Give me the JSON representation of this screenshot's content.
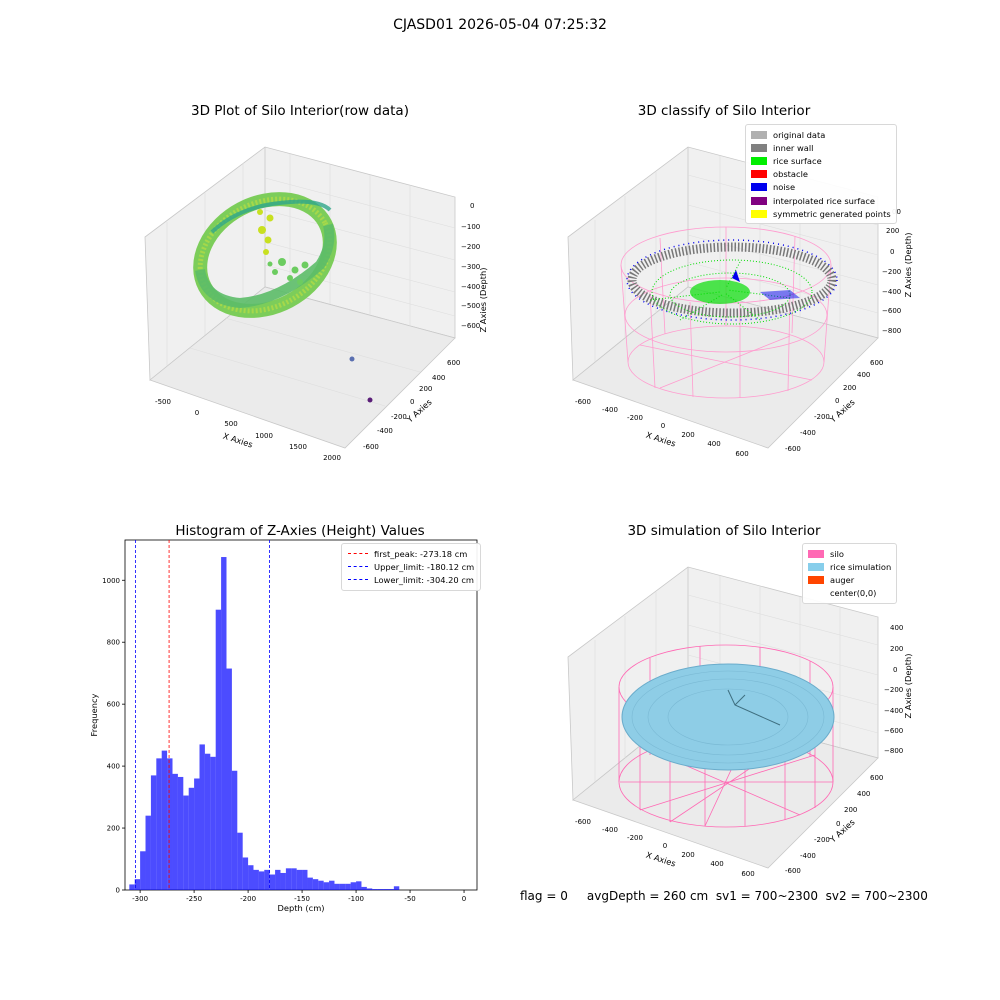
{
  "figure": {
    "suptitle": "CJASD01 2026-05-04 07:25:32",
    "footer": "flag = 0     avgDepth = 260 cm  sv1 = 700~2300  sv2 = 700~2300"
  },
  "panels": {
    "raw": {
      "title": "3D Plot of Silo Interior(row data)",
      "xlabel": "X Axies",
      "ylabel": "Y Axies",
      "zlabel": "Z Axies (Depth)",
      "xticks": [
        "-500",
        "0",
        "500",
        "1000",
        "1500",
        "2000"
      ],
      "yticks": [
        "-600",
        "-400",
        "-200",
        "0",
        "200",
        "400",
        "600"
      ],
      "zticks": [
        "0",
        "−100",
        "−200",
        "−300",
        "−400",
        "−500",
        "−600"
      ]
    },
    "classify": {
      "title": "3D classify of Silo Interior",
      "xlabel": "X Axies",
      "ylabel": "Y Axies",
      "zlabel": "Z Axies (Depth)",
      "xticks": [
        "-600",
        "-400",
        "-200",
        "0",
        "200",
        "400",
        "600"
      ],
      "yticks": [
        "-600",
        "-400",
        "-200",
        "0",
        "200",
        "400",
        "600"
      ],
      "zticks": [
        "200",
        "0",
        "−200",
        "−400",
        "−600",
        "−800"
      ],
      "ztick_partial": "00",
      "legend": [
        {
          "label": "original data",
          "color": "#b0b0b0"
        },
        {
          "label": "inner wall",
          "color": "#808080"
        },
        {
          "label": "rice surface",
          "color": "#00ee00"
        },
        {
          "label": "obstacle",
          "color": "#ff0000"
        },
        {
          "label": "noise",
          "color": "#0000ee"
        },
        {
          "label": "interpolated rice surface",
          "color": "#800080"
        },
        {
          "label": "symmetric generated points",
          "color": "#ffff00"
        }
      ]
    },
    "simulation": {
      "title": "3D simulation of Silo Interior",
      "xlabel": "X Axies",
      "ylabel": "Y Axies",
      "zlabel": "Z Axies (Depth)",
      "xticks": [
        "-600",
        "-400",
        "-200",
        "0",
        "200",
        "400",
        "600"
      ],
      "yticks": [
        "-600",
        "-400",
        "-200",
        "0",
        "200",
        "400",
        "600"
      ],
      "zticks": [
        "400",
        "200",
        "0",
        "−200",
        "−400",
        "−600",
        "−800"
      ],
      "legend": [
        {
          "label": "silo",
          "color": "#ff69b4"
        },
        {
          "label": "rice simulation",
          "color": "#87ceeb"
        },
        {
          "label": "auger",
          "color": "#ff4500"
        },
        {
          "label": "center(0,0)",
          "color": "#ffffff"
        }
      ]
    }
  },
  "chart_data": {
    "type": "bar",
    "title": "Histogram of Z-Axies (Height) Values",
    "xlabel": "Depth (cm)",
    "ylabel": "Frequency",
    "xlim": [
      -314,
      12
    ],
    "ylim": [
      0,
      1130
    ],
    "xticks": [
      -300,
      -250,
      -200,
      -150,
      -100,
      -50,
      0
    ],
    "yticks": [
      0,
      200,
      400,
      600,
      800,
      1000
    ],
    "bar_color": "#0000ff",
    "bin_width": 5,
    "bin_start": -310,
    "values": [
      18,
      35,
      125,
      240,
      370,
      425,
      450,
      425,
      375,
      365,
      305,
      330,
      360,
      470,
      440,
      430,
      905,
      1075,
      715,
      385,
      185,
      105,
      80,
      65,
      60,
      65,
      50,
      65,
      55,
      70,
      70,
      65,
      65,
      40,
      35,
      30,
      25,
      30,
      20,
      20,
      20,
      25,
      28,
      10,
      5,
      3,
      3,
      3,
      3,
      12
    ],
    "vlines": [
      {
        "name": "first_peak: -273.18 cm",
        "x": -273.18,
        "color": "#ff0000"
      },
      {
        "name": "Upper_limit: -180.12 cm",
        "x": -180.12,
        "color": "#0000ff"
      },
      {
        "name": "Lower_limit: -304.20 cm",
        "x": -304.2,
        "color": "#0000ff"
      }
    ]
  }
}
